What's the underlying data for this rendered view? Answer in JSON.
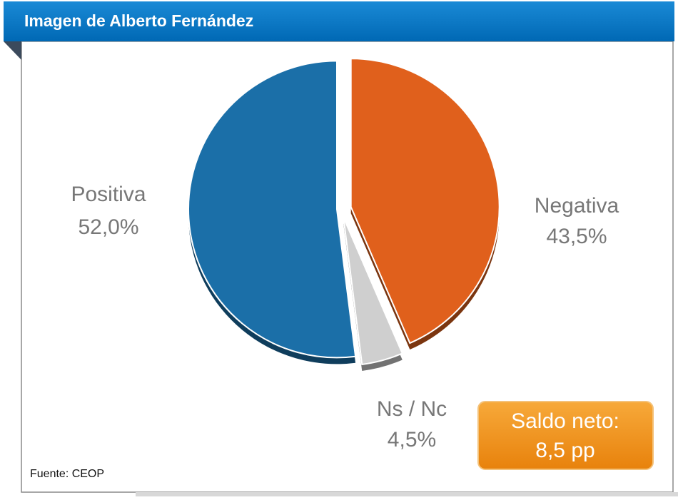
{
  "chart_data": {
    "type": "pie",
    "title": "Imagen de Alberto Fernández",
    "categories": [
      "Positiva",
      "Negativa",
      "Ns / Nc"
    ],
    "values": [
      52.0,
      43.5,
      4.5
    ],
    "value_labels": [
      "52,0%",
      "43,5%",
      "4,5%"
    ],
    "colors": [
      "#1b6fa8",
      "#e0601c",
      "#cfcfcf"
    ],
    "annotations": [
      "Saldo neto:",
      "8,5 pp"
    ],
    "source": "Fuente: CEOP"
  }
}
